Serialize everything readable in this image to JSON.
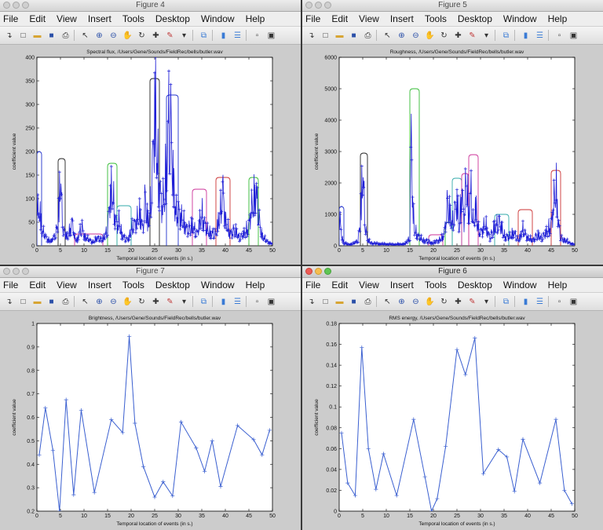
{
  "menu_items": [
    "File",
    "Edit",
    "View",
    "Insert",
    "Tools",
    "Desktop",
    "Window",
    "Help"
  ],
  "toolbar_icons": [
    "arrow-icon",
    "new-file-icon",
    "open-folder-icon",
    "save-icon",
    "print-icon",
    "sep",
    "pointer-icon",
    "zoom-in-icon",
    "zoom-out-icon",
    "pan-hand-icon",
    "rotate-3d-icon",
    "data-cursor-icon",
    "brush-icon",
    "dropdown-icon",
    "sep",
    "link-plot-icon",
    "sep",
    "colorbar-icon",
    "legend-icon",
    "sep",
    "hide-plot-tools-icon",
    "show-plot-tools-icon"
  ],
  "figures": [
    {
      "id": "fig4",
      "title": "Figure 4",
      "active": false,
      "chart_data": {
        "type": "line",
        "title": "Spectral flux, /Users/Gene/Sounds/FieldRec/bells/butler.wav",
        "xlabel": "Temporal location of events (in s.)",
        "ylabel": "coefficient value",
        "xlim": [
          0,
          50
        ],
        "ylim": [
          0,
          400
        ],
        "xticks": [
          0,
          5,
          10,
          15,
          20,
          25,
          30,
          35,
          40,
          45,
          50
        ],
        "yticks": [
          0,
          50,
          100,
          150,
          200,
          250,
          300,
          350,
          400
        ],
        "dense_signal": true,
        "series": [
          {
            "color": "#1f1fd6",
            "marker": "+",
            "x": [
              0,
              0.3,
              0.6,
              1,
              1.5,
              2,
              2.5,
              3,
              3.5,
              4,
              4.5,
              5,
              5.3,
              5.6,
              6,
              6.5,
              7,
              7.5,
              8,
              8.5,
              9,
              9.5,
              10,
              11,
              12,
              13,
              14,
              15,
              15.5,
              16,
              16.5,
              17,
              17.5,
              18,
              18.5,
              19,
              19.5,
              20,
              21,
              22,
              22.5,
              23,
              23.5,
              24,
              24.5,
              25,
              25.3,
              25.6,
              26,
              26.5,
              27,
              27.5,
              28,
              28.5,
              29,
              29.5,
              30,
              31,
              32,
              33,
              34,
              35,
              35.5,
              36,
              37,
              38,
              38.5,
              39,
              39.5,
              40,
              41,
              42,
              43,
              44,
              45,
              45.5,
              46,
              46.5,
              47,
              47.5,
              48,
              49,
              50
            ],
            "y": [
              150,
              60,
              100,
              40,
              30,
              20,
              15,
              10,
              20,
              30,
              60,
              180,
              90,
              40,
              30,
              20,
              40,
              60,
              20,
              15,
              30,
              50,
              25,
              15,
              10,
              20,
              15,
              40,
              120,
              140,
              80,
              50,
              60,
              30,
              20,
              15,
              20,
              40,
              60,
              80,
              40,
              120,
              60,
              80,
              180,
              350,
              300,
              200,
              150,
              100,
              120,
              200,
              310,
              280,
              150,
              80,
              90,
              60,
              40,
              50,
              30,
              80,
              60,
              40,
              30,
              30,
              60,
              90,
              140,
              60,
              30,
              40,
              20,
              30,
              50,
              90,
              110,
              140,
              80,
              40,
              20,
              10,
              5
            ]
          }
        ],
        "boxes": [
          {
            "x0": 0,
            "x1": 1,
            "y": 200,
            "color": "#2233cc"
          },
          {
            "x0": 4.5,
            "x1": 6,
            "y": 185,
            "color": "#222222"
          },
          {
            "x0": 15,
            "x1": 17,
            "y": 175,
            "color": "#33bb33"
          },
          {
            "x0": 17,
            "x1": 20,
            "y": 85,
            "color": "#33aaaa"
          },
          {
            "x0": 24,
            "x1": 26,
            "y": 355,
            "color": "#222222"
          },
          {
            "x0": 27.5,
            "x1": 30,
            "y": 320,
            "color": "#2233cc"
          },
          {
            "x0": 33,
            "x1": 36,
            "y": 120,
            "color": "#cc3399"
          },
          {
            "x0": 38,
            "x1": 41,
            "y": 145,
            "color": "#cc3333"
          },
          {
            "x0": 45,
            "x1": 47,
            "y": 145,
            "color": "#33bb33"
          },
          {
            "x0": 8,
            "x1": 14,
            "y": 25,
            "color": "#cc3399"
          }
        ]
      }
    },
    {
      "id": "fig5",
      "title": "Figure 5",
      "active": false,
      "chart_data": {
        "type": "line",
        "title": "Roughness, /Users/Gene/Sounds/FieldRec/bells/butler.wav",
        "xlabel": "Temporal location of events (in s.)",
        "ylabel": "coefficient value",
        "xlim": [
          0,
          50
        ],
        "ylim": [
          0,
          6000
        ],
        "xticks": [
          0,
          5,
          10,
          15,
          20,
          25,
          30,
          35,
          40,
          45,
          50
        ],
        "yticks": [
          0,
          1000,
          2000,
          3000,
          4000,
          5000,
          6000
        ],
        "dense_signal": true,
        "series": [
          {
            "color": "#1f1fd6",
            "marker": "+",
            "x": [
              0,
              0.5,
              1,
              2,
              3,
              4,
              4.5,
              5,
              5.5,
              6,
              7,
              8,
              10,
              12,
              14,
              15,
              15.3,
              15.6,
              16,
              17,
              18,
              20,
              22,
              22.5,
              23,
              24,
              25,
              25.5,
              26,
              26.5,
              27,
              27.5,
              28,
              28.5,
              29,
              29.5,
              30,
              31,
              32,
              33,
              34,
              35,
              36,
              37,
              38,
              39,
              40,
              41,
              42,
              43,
              44,
              45,
              45.5,
              46,
              46.5,
              47,
              48,
              49,
              50
            ],
            "y": [
              1200,
              400,
              100,
              50,
              80,
              200,
              1000,
              2900,
              800,
              200,
              100,
              80,
              60,
              50,
              70,
              300,
              4500,
              1500,
              600,
              300,
              200,
              100,
              300,
              700,
              1600,
              800,
              1700,
              600,
              2200,
              900,
              2600,
              1200,
              2000,
              700,
              1500,
              600,
              500,
              800,
              300,
              700,
              900,
              400,
              300,
              500,
              200,
              600,
              300,
              200,
              400,
              300,
              500,
              800,
              1500,
              2300,
              900,
              300,
              200,
              100,
              50
            ]
          }
        ],
        "boxes": [
          {
            "x0": 0,
            "x1": 1,
            "y": 1250,
            "color": "#2233cc"
          },
          {
            "x0": 4.5,
            "x1": 6,
            "y": 2950,
            "color": "#222222"
          },
          {
            "x0": 15,
            "x1": 17,
            "y": 5000,
            "color": "#33bb33"
          },
          {
            "x0": 22.5,
            "x1": 24,
            "y": 750,
            "color": "#33bb33"
          },
          {
            "x0": 24,
            "x1": 26,
            "y": 2150,
            "color": "#33aaaa"
          },
          {
            "x0": 26,
            "x1": 27.5,
            "y": 2300,
            "color": "#cc3399"
          },
          {
            "x0": 27.5,
            "x1": 29.5,
            "y": 2900,
            "color": "#cc3399"
          },
          {
            "x0": 33,
            "x1": 36,
            "y": 1000,
            "color": "#33aaaa"
          },
          {
            "x0": 38,
            "x1": 41,
            "y": 1150,
            "color": "#cc3333"
          },
          {
            "x0": 45,
            "x1": 47,
            "y": 2400,
            "color": "#cc3333"
          },
          {
            "x0": 19,
            "x1": 22,
            "y": 350,
            "color": "#cc3399"
          }
        ]
      }
    },
    {
      "id": "fig7",
      "title": "Figure 7",
      "active": false,
      "chart_data": {
        "type": "line",
        "title": "Brightness, /Users/Gene/Sounds/FieldRec/bells/butler.wav",
        "xlabel": "Temporal location of events (in s.)",
        "ylabel": "coefficient value",
        "xlim": [
          0,
          50
        ],
        "ylim": [
          0.2,
          1
        ],
        "xticks": [
          0,
          5,
          10,
          15,
          20,
          25,
          30,
          35,
          40,
          45,
          50
        ],
        "yticks": [
          0.2,
          0.3,
          0.4,
          0.5,
          0.6,
          0.7,
          0.8,
          0.9,
          1
        ],
        "dense_signal": false,
        "series": [
          {
            "color": "#3a5fd0",
            "marker": "+",
            "x": [
              0.5,
              1.8,
              3.4,
              4.8,
              6.2,
              7.8,
              9.4,
              12.2,
              15.8,
              18.2,
              19.6,
              20.8,
              22.6,
              25,
              26.8,
              28.8,
              30.6,
              33.8,
              35.6,
              37.2,
              39,
              42.6,
              46,
              47.8,
              49.4
            ],
            "y": [
              0.44,
              0.64,
              0.46,
              0.2,
              0.675,
              0.27,
              0.63,
              0.28,
              0.59,
              0.535,
              0.945,
              0.575,
              0.39,
              0.26,
              0.325,
              0.265,
              0.58,
              0.47,
              0.37,
              0.5,
              0.305,
              0.565,
              0.505,
              0.44,
              0.545
            ]
          }
        ]
      }
    },
    {
      "id": "fig6",
      "title": "Figure 6",
      "active": true,
      "chart_data": {
        "type": "line",
        "title": "RMS energy, /Users/Gene/Sounds/FieldRec/bells/butler.wav",
        "xlabel": "Temporal location of events (in s.)",
        "ylabel": "coefficient value",
        "xlim": [
          0,
          50
        ],
        "ylim": [
          0,
          0.18
        ],
        "xticks": [
          0,
          5,
          10,
          15,
          20,
          25,
          30,
          35,
          40,
          45,
          50
        ],
        "yticks": [
          0,
          0.02,
          0.04,
          0.06,
          0.08,
          0.1,
          0.12,
          0.14,
          0.16,
          0.18
        ],
        "dense_signal": false,
        "series": [
          {
            "color": "#3a5fd0",
            "marker": "+",
            "x": [
              0.5,
              1.8,
              3.4,
              4.8,
              6.2,
              7.8,
              9.4,
              12.2,
              15.8,
              18.2,
              19.6,
              20.8,
              22.6,
              25,
              26.8,
              28.8,
              30.6,
              33.8,
              35.6,
              37.2,
              39,
              42.6,
              46,
              47.8,
              49.4
            ],
            "y": [
              0.075,
              0.027,
              0.015,
              0.157,
              0.06,
              0.021,
              0.055,
              0.015,
              0.088,
              0.033,
              0.0,
              0.012,
              0.062,
              0.155,
              0.131,
              0.166,
              0.036,
              0.059,
              0.052,
              0.019,
              0.069,
              0.027,
              0.088,
              0.02,
              0.007
            ]
          }
        ]
      }
    }
  ]
}
